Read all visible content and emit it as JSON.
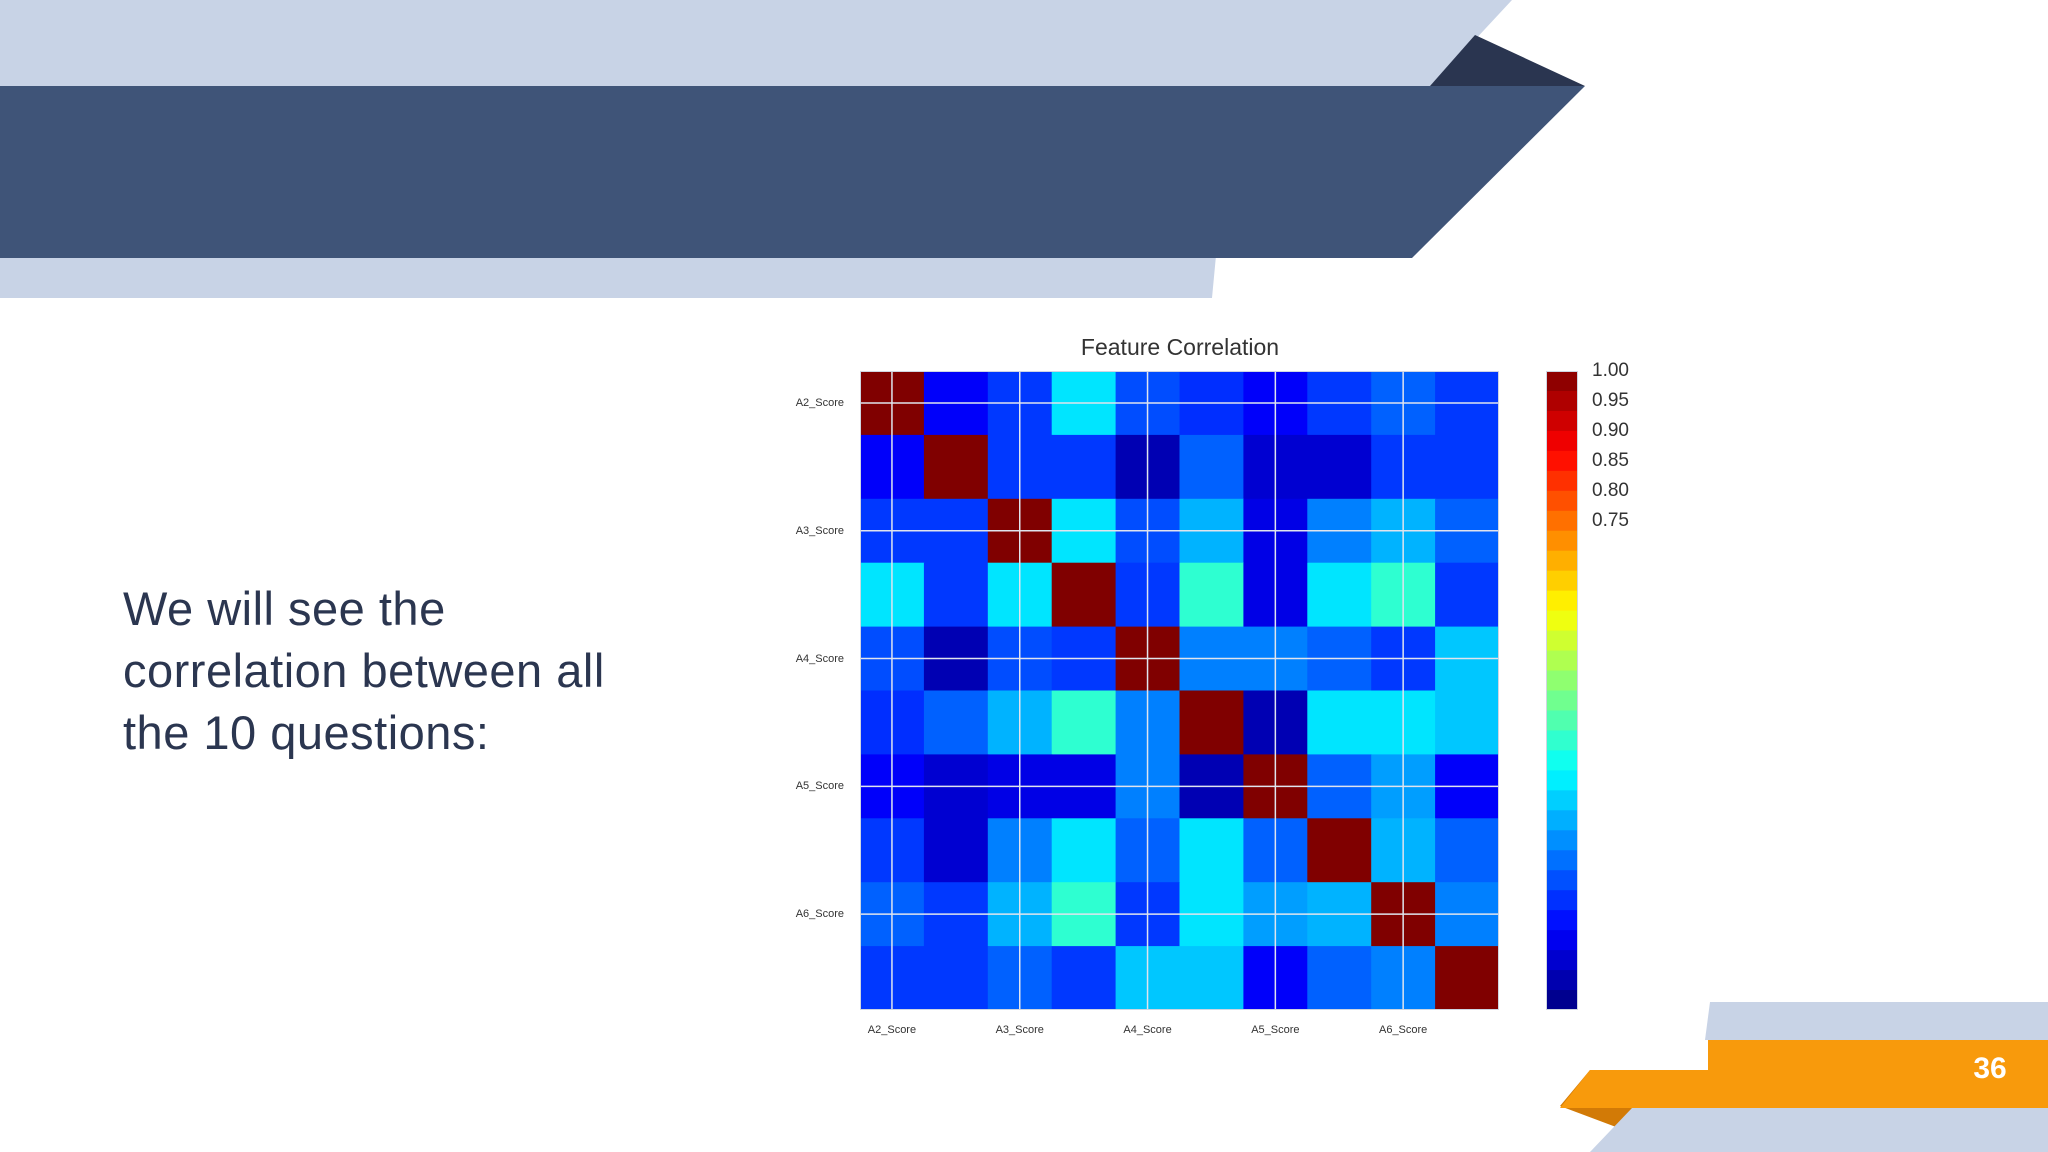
{
  "slide": {
    "body_text": "We will see the correlation between all the 10 questions:",
    "page_number": "36",
    "colors": {
      "header_band": "#3f5478",
      "header_light": "#c8d3e6",
      "header_dark_tip": "#2a3550",
      "footer_orange": "#f89a0c",
      "footer_orange_dark": "#d27a06",
      "footer_light": "#c8d3e6"
    }
  },
  "chart_data": {
    "type": "heatmap",
    "title": "Feature Correlation",
    "colormap": "jet",
    "n": 10,
    "grid": true,
    "y_tick_labels": [
      "A2_Score",
      "A3_Score",
      "A4_Score",
      "A5_Score",
      "A6_Score"
    ],
    "x_tick_labels": [
      "A2_Score",
      "A3_Score",
      "A4_Score",
      "A5_Score",
      "A6_Score"
    ],
    "colorbar_labels": [
      "1.00",
      "0.95",
      "0.90",
      "0.85",
      "0.80",
      "0.75"
    ],
    "colorbar_range": [
      0.0,
      1.0
    ],
    "matrix": [
      [
        1.0,
        0.12,
        0.18,
        0.35,
        0.2,
        0.17,
        0.12,
        0.18,
        0.22,
        0.18
      ],
      [
        0.12,
        1.0,
        0.18,
        0.18,
        0.05,
        0.22,
        0.08,
        0.08,
        0.18,
        0.18
      ],
      [
        0.18,
        0.18,
        1.0,
        0.35,
        0.2,
        0.3,
        0.1,
        0.25,
        0.3,
        0.22
      ],
      [
        0.35,
        0.18,
        0.35,
        1.0,
        0.18,
        0.42,
        0.1,
        0.35,
        0.42,
        0.18
      ],
      [
        0.2,
        0.05,
        0.2,
        0.18,
        1.0,
        0.25,
        0.25,
        0.22,
        0.18,
        0.32
      ],
      [
        0.17,
        0.22,
        0.3,
        0.42,
        0.25,
        1.0,
        0.05,
        0.35,
        0.35,
        0.32
      ],
      [
        0.12,
        0.08,
        0.1,
        0.1,
        0.25,
        0.05,
        1.0,
        0.22,
        0.28,
        0.12
      ],
      [
        0.18,
        0.08,
        0.25,
        0.35,
        0.22,
        0.35,
        0.22,
        1.0,
        0.3,
        0.22
      ],
      [
        0.22,
        0.18,
        0.3,
        0.42,
        0.18,
        0.35,
        0.28,
        0.3,
        1.0,
        0.25
      ],
      [
        0.18,
        0.18,
        0.22,
        0.18,
        0.32,
        0.32,
        0.12,
        0.22,
        0.25,
        1.0
      ]
    ]
  }
}
